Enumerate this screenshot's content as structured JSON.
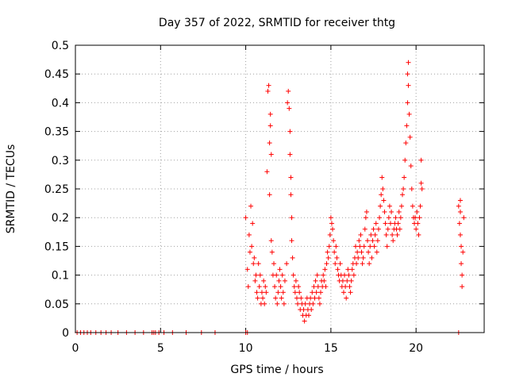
{
  "chart_data": {
    "type": "scatter",
    "title": "Day 357 of 2022, SRMTID for receiver thtg",
    "xlabel": "GPS time / hours",
    "ylabel": "SRMTID / TECUs",
    "xlim": [
      0,
      24
    ],
    "ylim": [
      0,
      0.5
    ],
    "xticks": [
      0,
      5,
      10,
      15,
      20
    ],
    "xtick_labels": [
      "0",
      "5",
      "10",
      "15",
      "20"
    ],
    "yticks": [
      0,
      0.05,
      0.1,
      0.15,
      0.2,
      0.25,
      0.3,
      0.35,
      0.4,
      0.45,
      0.5
    ],
    "ytick_labels": [
      "0",
      "0.05",
      "0.1",
      "0.15",
      "0.2",
      "0.25",
      "0.3",
      "0.35",
      "0.4",
      "0.45",
      "0.5"
    ],
    "grid": true,
    "marker": "+",
    "color": "#ff0000",
    "x": [
      0.1,
      0.3,
      0.5,
      0.7,
      0.9,
      1.2,
      1.5,
      1.8,
      2.1,
      2.5,
      3.0,
      3.5,
      4.0,
      4.5,
      4.6,
      4.7,
      4.9,
      5.2,
      5.7,
      6.5,
      7.4,
      8.2,
      10.0,
      10.1,
      10.0,
      10.1,
      10.15,
      10.2,
      10.25,
      10.3,
      10.35,
      10.4,
      10.45,
      10.5,
      10.55,
      10.6,
      10.65,
      10.7,
      10.75,
      10.8,
      10.85,
      10.9,
      10.95,
      11.0,
      11.05,
      11.1,
      11.15,
      11.2,
      11.25,
      11.3,
      11.35,
      11.4,
      11.4,
      11.45,
      11.45,
      11.5,
      11.5,
      11.55,
      11.6,
      11.65,
      11.7,
      11.75,
      11.8,
      11.85,
      11.9,
      11.95,
      12.0,
      12.05,
      12.1,
      12.15,
      12.2,
      12.25,
      12.3,
      12.4,
      12.45,
      12.5,
      12.55,
      12.6,
      12.6,
      12.65,
      12.65,
      12.7,
      12.7,
      12.75,
      12.8,
      12.85,
      12.9,
      12.95,
      13.0,
      13.05,
      13.1,
      13.15,
      13.2,
      13.25,
      13.3,
      13.35,
      13.4,
      13.45,
      13.5,
      13.55,
      13.6,
      13.65,
      13.7,
      13.75,
      13.8,
      13.85,
      13.9,
      13.95,
      14.0,
      14.05,
      14.1,
      14.15,
      14.2,
      14.25,
      14.3,
      14.35,
      14.4,
      14.45,
      14.5,
      14.55,
      14.6,
      14.65,
      14.7,
      14.75,
      14.8,
      14.85,
      14.9,
      14.95,
      15.0,
      15.05,
      15.1,
      15.15,
      15.2,
      15.25,
      15.3,
      15.35,
      15.4,
      15.45,
      15.5,
      15.55,
      15.6,
      15.65,
      15.7,
      15.75,
      15.8,
      15.85,
      15.9,
      15.95,
      16.0,
      16.05,
      16.1,
      16.15,
      16.2,
      16.25,
      16.3,
      16.35,
      16.4,
      16.45,
      16.5,
      16.55,
      16.6,
      16.65,
      16.7,
      16.75,
      16.8,
      16.85,
      16.9,
      16.95,
      17.0,
      17.05,
      17.1,
      17.15,
      17.2,
      17.25,
      17.3,
      17.35,
      17.4,
      17.45,
      17.5,
      17.55,
      17.6,
      17.65,
      17.7,
      17.75,
      17.8,
      17.85,
      17.9,
      17.95,
      18.0,
      18.05,
      18.1,
      18.15,
      18.2,
      18.25,
      18.3,
      18.35,
      18.4,
      18.45,
      18.5,
      18.55,
      18.6,
      18.65,
      18.7,
      18.75,
      18.8,
      18.85,
      18.9,
      18.95,
      19.0,
      19.05,
      19.1,
      19.15,
      19.2,
      19.25,
      19.3,
      19.35,
      19.4,
      19.45,
      19.5,
      19.5,
      19.55,
      19.55,
      19.6,
      19.65,
      19.7,
      19.75,
      19.8,
      19.85,
      19.9,
      19.95,
      20.0,
      20.05,
      20.1,
      20.15,
      20.2,
      20.25,
      20.3,
      20.3,
      20.35,
      22.5,
      22.55,
      22.6,
      22.6,
      22.65,
      22.65,
      22.7,
      22.7,
      22.75,
      22.8,
      22.5,
      22.6
    ],
    "y": [
      0,
      0,
      0,
      0,
      0,
      0,
      0,
      0,
      0,
      0,
      0,
      0,
      0,
      0,
      0,
      0,
      0,
      0,
      0,
      0,
      0,
      0,
      0,
      0,
      0.2,
      0.11,
      0.08,
      0.17,
      0.14,
      0.22,
      0.15,
      0.19,
      0.12,
      0.13,
      0.09,
      0.1,
      0.07,
      0.06,
      0.12,
      0.08,
      0.1,
      0.05,
      0.07,
      0.06,
      0.09,
      0.05,
      0.08,
      0.07,
      0.28,
      0.42,
      0.43,
      0.33,
      0.24,
      0.38,
      0.36,
      0.31,
      0.16,
      0.14,
      0.1,
      0.12,
      0.08,
      0.06,
      0.1,
      0.05,
      0.07,
      0.09,
      0.11,
      0.08,
      0.06,
      0.1,
      0.07,
      0.05,
      0.09,
      0.12,
      0.4,
      0.42,
      0.39,
      0.35,
      0.31,
      0.27,
      0.24,
      0.2,
      0.16,
      0.13,
      0.1,
      0.08,
      0.07,
      0.09,
      0.06,
      0.05,
      0.08,
      0.07,
      0.04,
      0.06,
      0.05,
      0.03,
      0.04,
      0.02,
      0.05,
      0.03,
      0.06,
      0.04,
      0.03,
      0.05,
      0.06,
      0.04,
      0.07,
      0.05,
      0.08,
      0.06,
      0.09,
      0.07,
      0.1,
      0.08,
      0.06,
      0.05,
      0.07,
      0.09,
      0.08,
      0.1,
      0.09,
      0.11,
      0.08,
      0.12,
      0.14,
      0.13,
      0.15,
      0.17,
      0.2,
      0.19,
      0.18,
      0.16,
      0.14,
      0.12,
      0.15,
      0.13,
      0.11,
      0.1,
      0.09,
      0.12,
      0.1,
      0.08,
      0.09,
      0.07,
      0.1,
      0.08,
      0.06,
      0.09,
      0.11,
      0.1,
      0.08,
      0.07,
      0.09,
      0.11,
      0.12,
      0.1,
      0.13,
      0.15,
      0.12,
      0.14,
      0.13,
      0.16,
      0.15,
      0.17,
      0.14,
      0.12,
      0.13,
      0.15,
      0.18,
      0.2,
      0.21,
      0.16,
      0.14,
      0.12,
      0.15,
      0.17,
      0.13,
      0.16,
      0.18,
      0.15,
      0.17,
      0.19,
      0.14,
      0.16,
      0.18,
      0.2,
      0.22,
      0.24,
      0.27,
      0.25,
      0.23,
      0.21,
      0.19,
      0.17,
      0.15,
      0.18,
      0.2,
      0.22,
      0.19,
      0.21,
      0.17,
      0.16,
      0.18,
      0.19,
      0.2,
      0.18,
      0.17,
      0.19,
      0.21,
      0.18,
      0.2,
      0.22,
      0.24,
      0.25,
      0.27,
      0.3,
      0.33,
      0.36,
      0.4,
      0.45,
      0.47,
      0.43,
      0.38,
      0.34,
      0.29,
      0.25,
      0.22,
      0.2,
      0.19,
      0.2,
      0.18,
      0.21,
      0.19,
      0.17,
      0.2,
      0.22,
      0.26,
      0.3,
      0.25,
      0.22,
      0.19,
      0.21,
      0.17,
      0.15,
      0.12,
      0.1,
      0.08,
      0.14,
      0.2,
      0,
      0.23
    ]
  }
}
